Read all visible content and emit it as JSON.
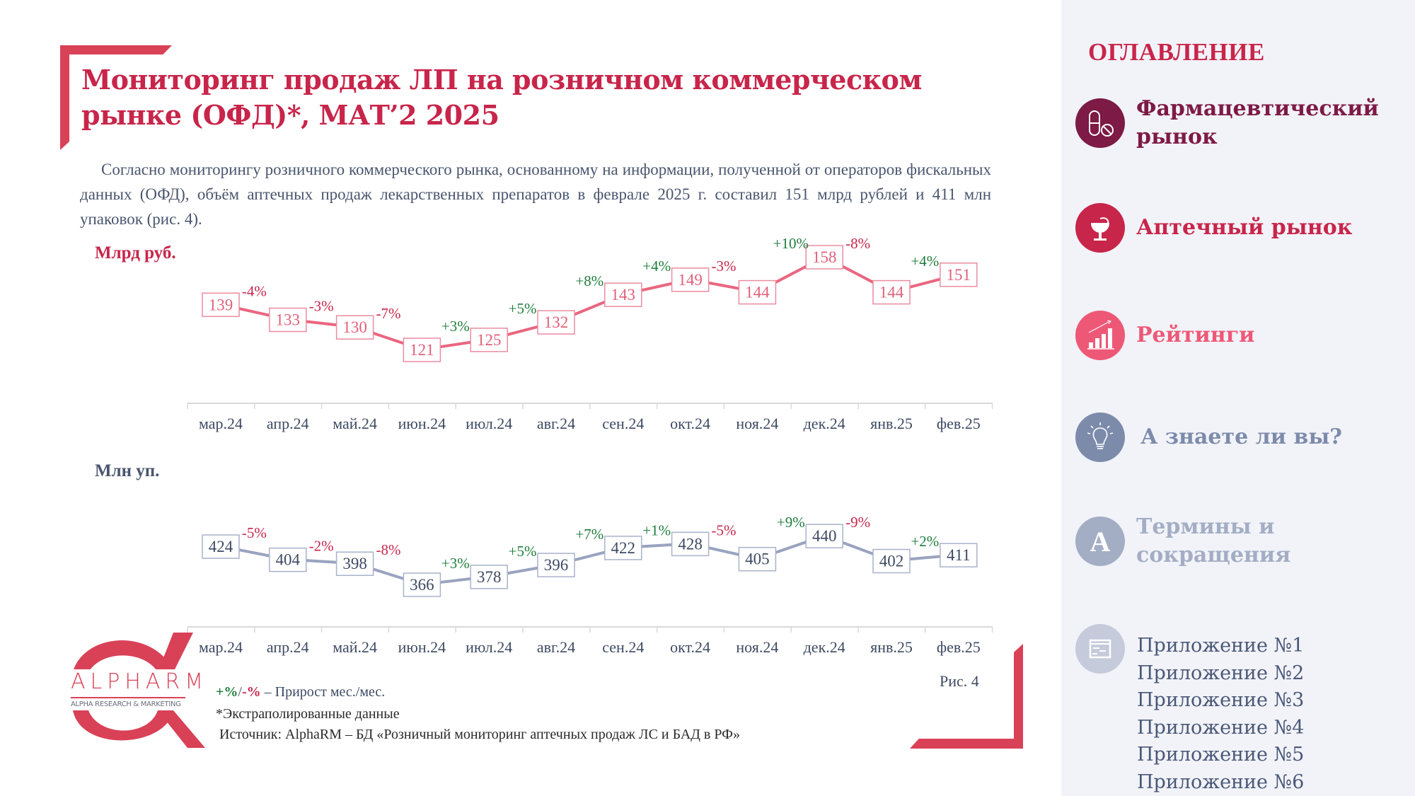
{
  "title": "Мониторинг продаж ЛП на розничном коммерческом рынке (ОФД)*, МАТ’2 2025",
  "paragraph": "Согласно мониторингу розничного коммерческого рынка, основанному на информации, полученной от операторов фискальных данных (ОФД), объём аптечных продаж лекарственных препаратов в феврале 2025 г. составил 151 млрд рублей и 411 млн упаковок (рис. 4).",
  "colors": {
    "accent": "#c8254a",
    "bracket": "#d94157",
    "line_rub": "#ea6680",
    "line_units": "#9aa3bf",
    "positive": "#1e7d3a",
    "negative": "#c8254a",
    "text": "#4a566e"
  },
  "chart_data": [
    {
      "type": "line",
      "title": "Млрд руб.",
      "ylabel": "Млрд руб.",
      "categories": [
        "мар.24",
        "апр.24",
        "май.24",
        "июн.24",
        "июл.24",
        "авг.24",
        "сен.24",
        "окт.24",
        "ноя.24",
        "дек.24",
        "янв.25",
        "фев.25"
      ],
      "values": [
        139,
        133,
        130,
        121,
        125,
        132,
        143,
        149,
        144,
        158,
        144,
        151
      ],
      "changes": [
        "-4%",
        "-3%",
        "-7%",
        "+3%",
        "+5%",
        "+8%",
        "+4%",
        "-3%",
        "+10%",
        "-8%",
        "+4%"
      ],
      "ylim": [
        80,
        160
      ],
      "grid": false
    },
    {
      "type": "line",
      "title": "Млн уп.",
      "ylabel": "Млн уп.",
      "categories": [
        "мар.24",
        "апр.24",
        "май.24",
        "июн.24",
        "июл.24",
        "авг.24",
        "сен.24",
        "окт.24",
        "ноя.24",
        "дек.24",
        "янв.25",
        "фев.25"
      ],
      "values": [
        424,
        404,
        398,
        366,
        378,
        396,
        422,
        428,
        405,
        440,
        402,
        411
      ],
      "changes": [
        "-5%",
        "-2%",
        "-8%",
        "+3%",
        "+5%",
        "+7%",
        "+1%",
        "-5%",
        "+9%",
        "-9%",
        "+2%"
      ],
      "ylim": [
        250,
        460
      ],
      "grid": false
    }
  ],
  "legend": {
    "pos": "+%",
    "sep": "/",
    "neg": "-%",
    "text": " – Прирост мес./мес."
  },
  "footnote": "*Экстраполированные данные",
  "source": "Источник: AlphaRM – БД «Розничный мониторинг аптечных продаж ЛС и БАД в РФ»",
  "figure_label": "Рис. 4",
  "logo": {
    "name": "ALPHARM",
    "tagline": "ALPHA RESEARCH & MARKETING"
  },
  "sidebar": {
    "title": "ОГЛАВЛЕНИЕ",
    "items": [
      {
        "label": "Фармацевтический рынок",
        "icon": "pills-icon",
        "color": "#7d1a45"
      },
      {
        "label": "Аптечный рынок",
        "icon": "pharmacy-bowl-icon",
        "color": "#c8254a"
      },
      {
        "label": "Рейтинги",
        "icon": "bar-chart-icon",
        "color": "#ee5877"
      },
      {
        "label": "А знаете ли вы?",
        "icon": "lightbulb-icon",
        "color": "#7d8bab"
      },
      {
        "label": "Термины и сокращения",
        "icon": "letter-a-icon",
        "color": "#a3aec5"
      }
    ],
    "appendix_icon": "document-icon",
    "appendices": [
      "Приложение №1",
      "Приложение №2",
      "Приложение №3",
      "Приложение №4",
      "Приложение №5",
      "Приложение №6"
    ]
  }
}
